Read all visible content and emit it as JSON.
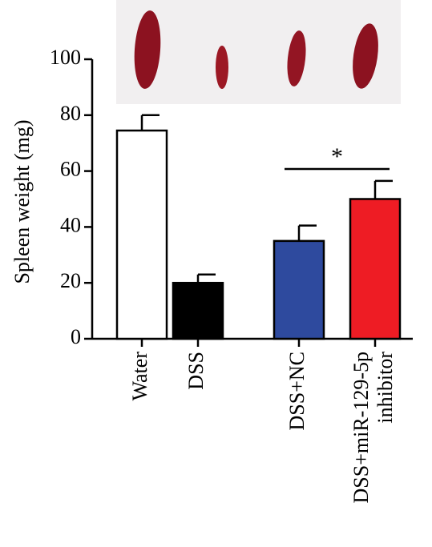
{
  "chart_data": {
    "type": "bar",
    "ylabel": "Spleen weight (mg)",
    "xlabel": "",
    "ylim": [
      0,
      100
    ],
    "yticks": [
      0,
      20,
      40,
      60,
      80,
      100
    ],
    "categories": [
      [
        "Water"
      ],
      [
        "DSS"
      ],
      [
        "DSS+NC"
      ],
      [
        "DSS+miR-129-5p",
        "inhibitor"
      ]
    ],
    "values": [
      74.5,
      20.0,
      35.0,
      50.0
    ],
    "errors": [
      5.5,
      3.0,
      5.5,
      6.5
    ],
    "colors": [
      "#ffffff",
      "#000000",
      "#2e4a9e",
      "#ee1c24"
    ],
    "significance": [
      {
        "from": 2,
        "to": 3,
        "label": "*"
      }
    ],
    "photo": {
      "description": "spleen specimens",
      "colors": [
        "#8c1220",
        "#f1eff0"
      ]
    }
  }
}
